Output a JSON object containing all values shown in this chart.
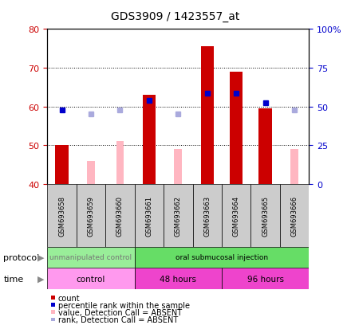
{
  "title": "GDS3909 / 1423557_at",
  "samples": [
    "GSM693658",
    "GSM693659",
    "GSM693660",
    "GSM693661",
    "GSM693662",
    "GSM693663",
    "GSM693664",
    "GSM693665",
    "GSM693666"
  ],
  "count_values": [
    50.0,
    null,
    null,
    63.0,
    null,
    75.5,
    69.0,
    59.5,
    null
  ],
  "count_absent_values": [
    null,
    46.0,
    51.0,
    null,
    49.0,
    null,
    null,
    null,
    49.0
  ],
  "rank_values": [
    59.0,
    null,
    null,
    61.5,
    null,
    63.5,
    63.5,
    61.0,
    null
  ],
  "rank_absent_values": [
    null,
    58.0,
    59.0,
    null,
    58.0,
    null,
    null,
    null,
    59.0
  ],
  "ylim": [
    40,
    80
  ],
  "yticks_left": [
    40,
    50,
    60,
    70,
    80
  ],
  "yticks_right_vals": [
    40,
    50,
    60,
    70,
    80
  ],
  "yticks_right_labels": [
    "0",
    "25",
    "50",
    "75",
    "100%"
  ],
  "bar_width": 0.45,
  "count_color": "#CC0000",
  "count_absent_color": "#FFB6C1",
  "rank_color": "#0000CC",
  "rank_absent_color": "#AAAADD",
  "left_label_color": "#CC0000",
  "right_label_color": "#0000CC",
  "sample_box_color": "#CCCCCC",
  "protocol_boxes": [
    {
      "label": "unmanipulated control",
      "start": 0,
      "end": 3,
      "color": "#99EE99",
      "text_color": "#777777"
    },
    {
      "label": "oral submucosal injection",
      "start": 3,
      "end": 9,
      "color": "#66DD66",
      "text_color": "#000000"
    }
  ],
  "time_boxes": [
    {
      "label": "control",
      "start": 0,
      "end": 3,
      "color": "#FF99EE"
    },
    {
      "label": "48 hours",
      "start": 3,
      "end": 6,
      "color": "#EE44CC"
    },
    {
      "label": "96 hours",
      "start": 6,
      "end": 9,
      "color": "#EE44CC"
    }
  ],
  "legend_items": [
    {
      "color": "#CC0000",
      "label": "count"
    },
    {
      "color": "#0000CC",
      "label": "percentile rank within the sample"
    },
    {
      "color": "#FFB6C1",
      "label": "value, Detection Call = ABSENT"
    },
    {
      "color": "#AAAADD",
      "label": "rank, Detection Call = ABSENT"
    }
  ]
}
